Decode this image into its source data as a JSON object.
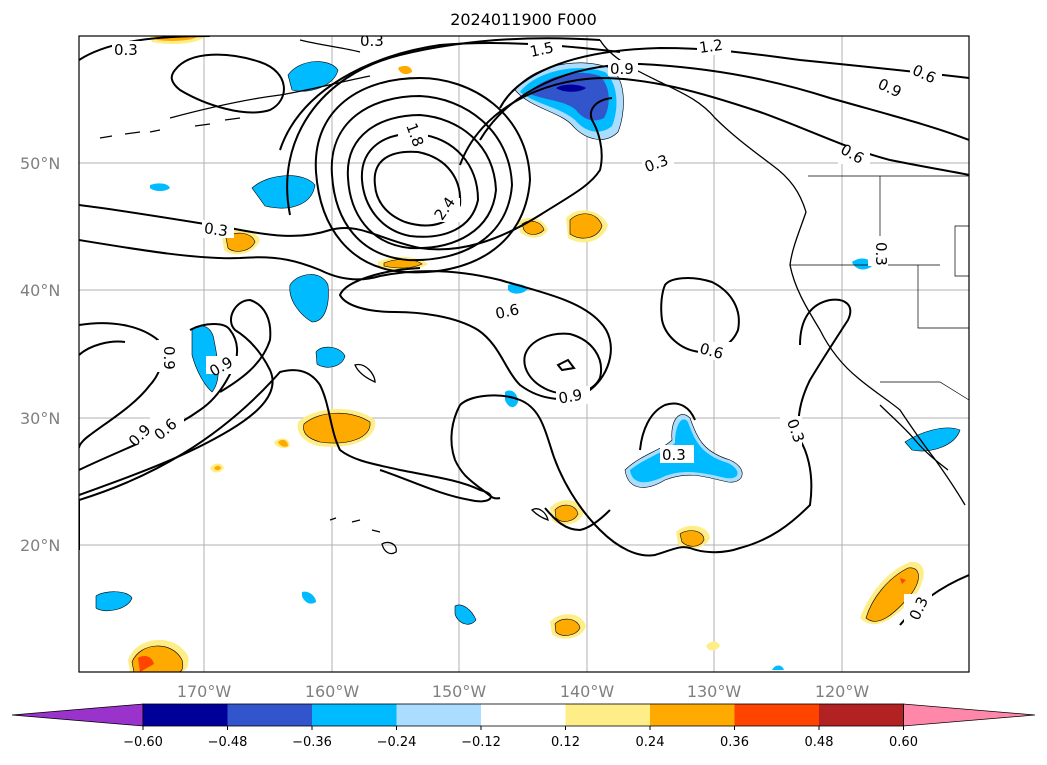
{
  "title": "2024011900 F000",
  "lat_labels": [
    "50°N",
    "40°N",
    "30°N",
    "20°N"
  ],
  "lon_labels": [
    "170°W",
    "160°W",
    "150°W",
    "140°W",
    "130°W",
    "120°W"
  ],
  "contour_labels": [
    "0.3",
    "0.3",
    "1.5",
    "1.2",
    "0.9",
    "0.6",
    "0.9",
    "1.8",
    "0.6",
    "0.3",
    "2.4",
    "0.3",
    "0.6",
    "0.9",
    "0.9",
    "0.6",
    "0.9",
    "0.9",
    "0.6",
    "0.3",
    "0.3",
    "0.3",
    "0.3"
  ],
  "colorbar": {
    "ticks": [
      "−0.60",
      "−0.48",
      "−0.36",
      "−0.24",
      "−0.12",
      "0.12",
      "0.24",
      "0.36",
      "0.48",
      "0.60"
    ],
    "colors": [
      "#9933cc",
      "#000099",
      "#3355cc",
      "#00bbff",
      "#aaddff",
      "#ffffff",
      "#ffee88",
      "#ffaa00",
      "#ff4400",
      "#b22222",
      "#ff88aa"
    ]
  },
  "fill_colors": {
    "light_blue": "#aaddff",
    "blue": "#00bbff",
    "mid_blue": "#3355cc",
    "dark_blue": "#000099",
    "light_yellow": "#ffee88",
    "orange": "#ffaa00",
    "red_orange": "#ff4400"
  }
}
